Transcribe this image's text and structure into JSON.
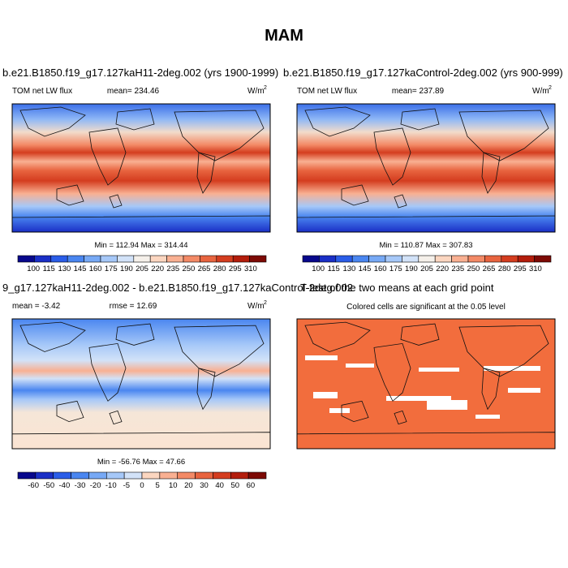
{
  "title": "MAM",
  "panels": [
    {
      "heading": "b.e21.B1850.f19_g17.127kaH11-2deg.002 (yrs 1900-1999)",
      "left": "TOM net LW flux",
      "center": "mean= 234.46",
      "units": "W/m",
      "units_sup": "2",
      "stats": "Min = 112.94 Max = 314.44",
      "colorbar": [
        100,
        115,
        130,
        145,
        160,
        175,
        190,
        205,
        220,
        235,
        250,
        265,
        280,
        295,
        310
      ]
    },
    {
      "heading": "b.e21.B1850.f19_g17.127kaControl-2deg.002 (yrs 900-999)",
      "left": "TOM net LW flux",
      "center": "mean= 237.89",
      "units": "W/m",
      "units_sup": "2",
      "stats": "Min = 110.87 Max = 307.83",
      "colorbar": [
        100,
        115,
        130,
        145,
        160,
        175,
        190,
        205,
        220,
        235,
        250,
        265,
        280,
        295,
        310
      ]
    },
    {
      "heading": "9_g17.127kaH11-2deg.002 - b.e21.B1850.f19_g17.127kaControl-2deg.002",
      "left": "mean =  -3.42",
      "center": "rmse =  12.69",
      "units": "W/m",
      "units_sup": "2",
      "stats": "Min = -56.76 Max =  47.66",
      "colorbar": [
        -60,
        -50,
        -40,
        -30,
        -20,
        -10,
        -5,
        0,
        5,
        10,
        20,
        30,
        40,
        50,
        60
      ]
    },
    {
      "heading": "T-test of the two means at each grid point",
      "center": "Colored cells are significant at the 0.05 level"
    }
  ]
}
